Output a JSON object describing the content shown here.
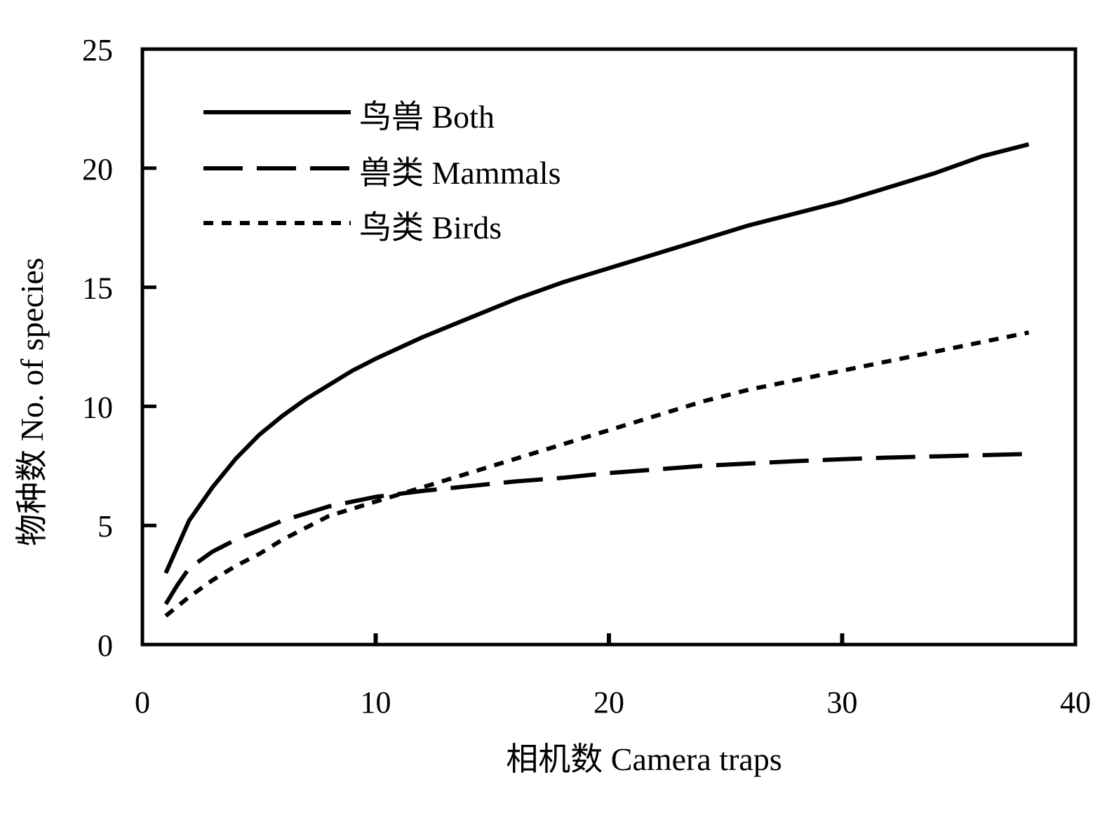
{
  "chart_data": {
    "type": "line",
    "xlabel": "相机数 Camera traps",
    "ylabel": "物种数 No. of species",
    "xlim": [
      0,
      40
    ],
    "ylim": [
      0,
      25
    ],
    "xticks": [
      "0",
      "10",
      "20",
      "30",
      "40"
    ],
    "yticks": [
      "0",
      "5",
      "10",
      "15",
      "20",
      "25"
    ],
    "grid": false,
    "legend_position": "top-left",
    "line_color": "#000000",
    "series": [
      {
        "name": "鸟兽 Both",
        "style": "solid",
        "x": [
          1,
          2,
          3,
          4,
          5,
          6,
          7,
          8,
          9,
          10,
          12,
          14,
          16,
          18,
          20,
          22,
          24,
          26,
          28,
          30,
          32,
          34,
          36,
          38
        ],
        "y": [
          3.0,
          5.2,
          6.6,
          7.8,
          8.8,
          9.6,
          10.3,
          10.9,
          11.5,
          12.0,
          12.9,
          13.7,
          14.5,
          15.2,
          15.8,
          16.4,
          17.0,
          17.6,
          18.1,
          18.6,
          19.2,
          19.8,
          20.5,
          21.0
        ]
      },
      {
        "name": "兽类 Mammals",
        "style": "dashed",
        "x": [
          1,
          1.5,
          2,
          3,
          4,
          5,
          6,
          7,
          8,
          9,
          10,
          12,
          14,
          16,
          18,
          20,
          22,
          24,
          26,
          28,
          30,
          32,
          34,
          36,
          38
        ],
        "y": [
          1.7,
          2.5,
          3.2,
          3.9,
          4.4,
          4.8,
          5.2,
          5.5,
          5.8,
          6.0,
          6.2,
          6.45,
          6.65,
          6.85,
          7.0,
          7.2,
          7.35,
          7.5,
          7.6,
          7.7,
          7.78,
          7.85,
          7.9,
          7.95,
          8.0
        ]
      },
      {
        "name": "鸟类 Birds",
        "style": "dotted",
        "x": [
          1,
          2,
          3,
          4,
          5,
          6,
          7,
          8,
          9,
          10,
          12,
          14,
          16,
          18,
          20,
          22,
          24,
          26,
          28,
          30,
          32,
          34,
          36,
          38
        ],
        "y": [
          1.2,
          2.0,
          2.7,
          3.3,
          3.8,
          4.4,
          4.9,
          5.4,
          5.7,
          6.0,
          6.6,
          7.2,
          7.8,
          8.4,
          9.0,
          9.6,
          10.2,
          10.7,
          11.1,
          11.5,
          11.9,
          12.3,
          12.7,
          13.1
        ]
      }
    ]
  }
}
